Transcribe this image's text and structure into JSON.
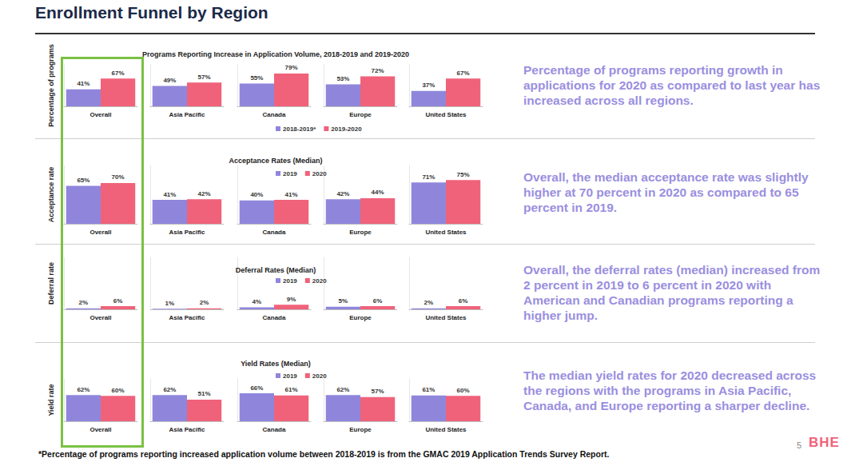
{
  "title": "Enrollment Funnel by Region",
  "chart_data": [
    {
      "type": "bar",
      "title": "Programs Reporting Increase in Application Volume, 2018-2019 and 2019-2020",
      "y_label": "Percentage of programs",
      "categories": [
        "Overall",
        "Asia Pacific",
        "Canada",
        "Europe",
        "United States"
      ],
      "series": [
        {
          "name": "2018-2019*",
          "color": "#8F86DC",
          "values": [
            41,
            49,
            55,
            53,
            37
          ],
          "value_labels": [
            "41%",
            "49%",
            "55%",
            "53%",
            "37%"
          ]
        },
        {
          "name": "2019-2020",
          "color": "#F0627A",
          "values": [
            67,
            57,
            79,
            72,
            67
          ],
          "value_labels": [
            "67%",
            "57%",
            "79%",
            "72%",
            "67%"
          ]
        }
      ],
      "ylim": [
        0,
        100
      ],
      "grid": false,
      "legend": "bottom",
      "data_labels": true,
      "tick_labels": "x",
      "annotations": [
        "Percentage of programs reporting growth in applications for 2020 as compared to last year has increased across all regions."
      ]
    },
    {
      "type": "bar",
      "title": "Acceptance Rates (Median)",
      "y_label": "Acceptance rate",
      "categories": [
        "Overall",
        "Asia Pacific",
        "Canada",
        "Europe",
        "United States"
      ],
      "series": [
        {
          "name": "2019",
          "color": "#8F86DC",
          "values": [
            65,
            41,
            40,
            42,
            71
          ],
          "value_labels": [
            "65%",
            "41%",
            "40%",
            "42%",
            "71%"
          ]
        },
        {
          "name": "2020",
          "color": "#F0627A",
          "values": [
            70,
            42,
            41,
            44,
            75
          ],
          "value_labels": [
            "70%",
            "42%",
            "41%",
            "44%",
            "75%"
          ]
        }
      ],
      "ylim": [
        0,
        100
      ],
      "grid": false,
      "legend": "top",
      "data_labels": true,
      "tick_labels": "x",
      "annotations": [
        "Overall, the median acceptance rate was slightly higher at 70 percent in 2020 as compared to 65 percent in 2019."
      ]
    },
    {
      "type": "bar",
      "title": "Deferral Rates (Median)",
      "y_label": "Deferral rate",
      "categories": [
        "Overall",
        "Asia Pacific",
        "Canada",
        "Europe",
        "United States"
      ],
      "series": [
        {
          "name": "2019",
          "color": "#8F86DC",
          "values": [
            2,
            1,
            4,
            5,
            2
          ],
          "value_labels": [
            "2%",
            "1%",
            "4%",
            "5%",
            "2%"
          ]
        },
        {
          "name": "2020",
          "color": "#F0627A",
          "values": [
            6,
            2,
            9,
            6,
            6
          ],
          "value_labels": [
            "6%",
            "2%",
            "9%",
            "6%",
            "6%"
          ]
        }
      ],
      "ylim": [
        0,
        100
      ],
      "grid": false,
      "legend": "top",
      "data_labels": true,
      "tick_labels": "x",
      "annotations": [
        "Overall, the deferral rates (median) increased from 2 percent in 2019 to 6 percent in 2020 with American and Canadian programs reporting a higher jump."
      ]
    },
    {
      "type": "bar",
      "title": "Yield Rates (Median)",
      "y_label": "Yield rate",
      "categories": [
        "Overall",
        "Asia Pacific",
        "Canada",
        "Europe",
        "United States"
      ],
      "series": [
        {
          "name": "2019",
          "color": "#8F86DC",
          "values": [
            62,
            62,
            66,
            62,
            61
          ],
          "value_labels": [
            "62%",
            "62%",
            "66%",
            "62%",
            "61%"
          ]
        },
        {
          "name": "2020",
          "color": "#F0627A",
          "values": [
            60,
            51,
            61,
            57,
            60
          ],
          "value_labels": [
            "60%",
            "51%",
            "61%",
            "57%",
            "60%"
          ]
        }
      ],
      "ylim": [
        0,
        100
      ],
      "grid": false,
      "legend": "top",
      "data_labels": true,
      "tick_labels": "x",
      "annotations": [
        "The median yield rates for 2020 decreased across the regions with the programs in Asia Pacific, Canada, and Europe reporting a sharper decline."
      ]
    }
  ],
  "footnote": "*Percentage of programs reporting increased application volume between 2018-2019 is from the GMAC 2019 Application Trends Survey Report.",
  "page_number": 5,
  "logo": "BHE"
}
